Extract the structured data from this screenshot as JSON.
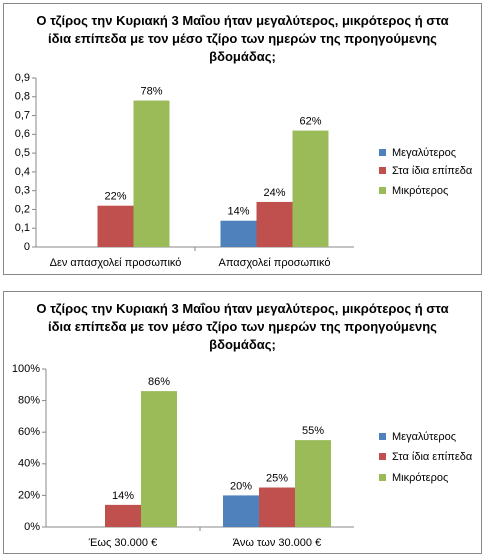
{
  "chart_data": [
    {
      "type": "bar",
      "title": "Ο τζίρος την Κυριακή 3 Μαΐου ήταν μεγαλύτερος, μικρότερος ή στα ίδια επίπεδα  με τον μέσο τζίρο των ημερών της προηγούμενης βδομάδας;",
      "categories": [
        "Δεν απασχολεί προσωπικό",
        "Απασχολεί προσωπικό"
      ],
      "series": [
        {
          "name": "Μεγαλύτερος",
          "color": "#4f81bd",
          "values": [
            null,
            0.14
          ],
          "value_labels": [
            null,
            "14%"
          ]
        },
        {
          "name": "Στα ίδια επίπεδα",
          "color": "#c0504d",
          "values": [
            0.22,
            0.24
          ],
          "value_labels": [
            "22%",
            "24%"
          ]
        },
        {
          "name": "Μικρότερος",
          "color": "#9bbb59",
          "values": [
            0.78,
            0.62
          ],
          "value_labels": [
            "78%",
            "62%"
          ]
        }
      ],
      "ylim": [
        0,
        0.9
      ],
      "yticks": [
        0,
        {
          "value": 0.1,
          "label": "0,1"
        },
        {
          "value": 0.2,
          "label": "0,2"
        },
        {
          "value": 0.3,
          "label": "0,3"
        },
        {
          "value": 0.4,
          "label": "0,4"
        },
        {
          "value": 0.5,
          "label": "0,5"
        },
        {
          "value": 0.6,
          "label": "0,6"
        },
        {
          "value": 0.7,
          "label": "0,7"
        },
        {
          "value": 0.8,
          "label": "0,8"
        },
        {
          "value": 0.9,
          "label": "0,9"
        }
      ],
      "grid": false,
      "legend": "right"
    },
    {
      "type": "bar",
      "title": "Ο τζίρος την Κυριακή 3 Μαΐου ήταν μεγαλύτερος, μικρότερος ή στα ίδια επίπεδα  με τον μέσο τζίρο των ημερών της προηγούμενης βδομάδας;",
      "categories": [
        "Έως 30.000 €",
        "Άνω των 30.000 €"
      ],
      "series": [
        {
          "name": "Μεγαλύτερος",
          "color": "#4f81bd",
          "values": [
            null,
            20
          ],
          "value_labels": [
            null,
            "20%"
          ]
        },
        {
          "name": "Στα ίδια επίπεδα",
          "color": "#c0504d",
          "values": [
            14,
            25
          ],
          "value_labels": [
            "14%",
            "25%"
          ]
        },
        {
          "name": "Μικρότερος",
          "color": "#9bbb59",
          "values": [
            86,
            55
          ],
          "value_labels": [
            "86%",
            "55%"
          ]
        }
      ],
      "ylim": [
        0,
        100
      ],
      "yticks": [
        {
          "value": 0,
          "label": "0%"
        },
        {
          "value": 20,
          "label": "20%"
        },
        {
          "value": 40,
          "label": "40%"
        },
        {
          "value": 60,
          "label": "60%"
        },
        {
          "value": 80,
          "label": "80%"
        },
        {
          "value": 100,
          "label": "100%"
        }
      ],
      "grid": false,
      "legend": "right"
    }
  ]
}
